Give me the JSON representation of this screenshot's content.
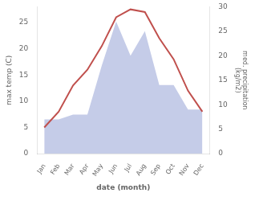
{
  "chart_data": {
    "type": "line",
    "xlabel": "date (month)",
    "ylabel": "max temp (C)",
    "y2label": "med. precipitation\n(kg/m2)",
    "categories": [
      "Jan",
      "Feb",
      "Mar",
      "Apr",
      "May",
      "Jun",
      "Jul",
      "Aug",
      "Sep",
      "Oct",
      "Nov",
      "Dec"
    ],
    "series": [
      {
        "type": "area",
        "color": "#c5cce8",
        "axis": "y2",
        "values": [
          7,
          7,
          8,
          8,
          18,
          27,
          20,
          25,
          14,
          14,
          9,
          9
        ]
      },
      {
        "type": "line",
        "color": "#c0504d",
        "values": [
          5,
          8,
          13,
          16,
          20.5,
          26,
          27.5,
          27,
          22,
          18,
          12,
          8
        ]
      }
    ],
    "ylim": [
      0,
      28
    ],
    "yticks": [
      0,
      5,
      10,
      15,
      20,
      25
    ],
    "y2lim": [
      0,
      30
    ],
    "y2ticks": [
      0,
      5,
      10,
      15,
      20,
      25,
      30
    ],
    "grid": false
  }
}
